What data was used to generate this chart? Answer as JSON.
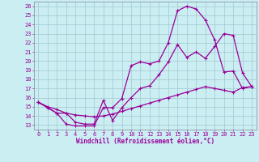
{
  "xlabel": "Windchill (Refroidissement éolien,°C)",
  "bg_color": "#cbeef3",
  "grid_color": "#a8cdd4",
  "line_color": "#990099",
  "spine_color": "#8899aa",
  "x_ticks": [
    0,
    1,
    2,
    3,
    4,
    5,
    6,
    7,
    8,
    9,
    10,
    11,
    12,
    13,
    14,
    15,
    16,
    17,
    18,
    19,
    20,
    21,
    22,
    23
  ],
  "y_ticks": [
    13,
    14,
    15,
    16,
    17,
    18,
    19,
    20,
    21,
    22,
    23,
    24,
    25,
    26
  ],
  "xlim": [
    -0.5,
    23.5
  ],
  "ylim": [
    12.5,
    26.5
  ],
  "line1_x": [
    0,
    1,
    2,
    3,
    4,
    5,
    6,
    7,
    8,
    9,
    10,
    11,
    12,
    13,
    14,
    15,
    16,
    17,
    18,
    19,
    20,
    21,
    22,
    23
  ],
  "line1_y": [
    15.5,
    14.9,
    14.3,
    13.1,
    12.9,
    12.9,
    12.9,
    14.9,
    14.9,
    15.9,
    19.5,
    19.9,
    19.7,
    20.0,
    22.0,
    25.5,
    26.0,
    25.7,
    24.5,
    22.3,
    18.8,
    18.9,
    17.0,
    17.2
  ],
  "line2_x": [
    0,
    1,
    2,
    3,
    4,
    5,
    6,
    7,
    8,
    9,
    10,
    11,
    12,
    13,
    14,
    15,
    16,
    17,
    18,
    19,
    20,
    21,
    22,
    23
  ],
  "line2_y": [
    15.5,
    14.9,
    14.3,
    14.3,
    13.3,
    13.1,
    13.1,
    15.7,
    13.5,
    14.9,
    16.0,
    17.0,
    17.3,
    18.5,
    19.9,
    21.8,
    20.4,
    21.0,
    20.3,
    21.6,
    23.0,
    22.8,
    18.7,
    17.2
  ],
  "line3_x": [
    0,
    1,
    2,
    3,
    4,
    5,
    6,
    7,
    8,
    9,
    10,
    11,
    12,
    13,
    14,
    15,
    16,
    17,
    18,
    19,
    20,
    21,
    22,
    23
  ],
  "line3_y": [
    15.5,
    15.0,
    14.7,
    14.3,
    14.1,
    14.0,
    13.9,
    14.0,
    14.2,
    14.5,
    14.8,
    15.1,
    15.4,
    15.7,
    16.0,
    16.3,
    16.6,
    16.9,
    17.2,
    17.0,
    16.8,
    16.6,
    17.1,
    17.2
  ],
  "tick_fontsize": 5.0,
  "xlabel_fontsize": 5.5,
  "marker_size": 3.0,
  "linewidth": 0.9
}
